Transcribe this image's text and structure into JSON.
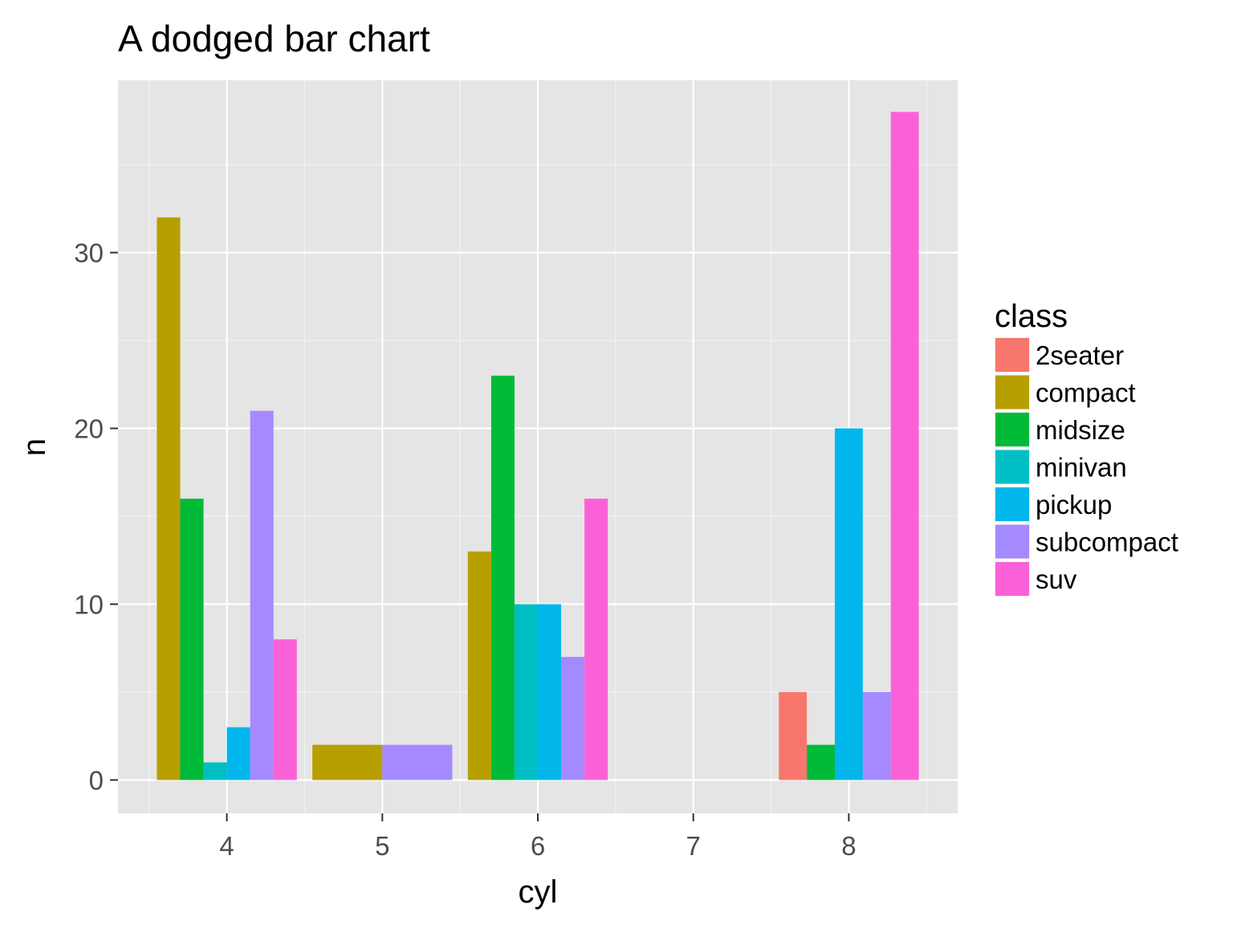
{
  "chart_data": {
    "type": "bar",
    "title": "A dodged bar chart",
    "xlabel": "cyl",
    "ylabel": "n",
    "x_ticks": [
      "4",
      "5",
      "6",
      "7",
      "8"
    ],
    "y_ticks": [
      0,
      10,
      20,
      30
    ],
    "ylim": [
      -1.9,
      39.8
    ],
    "xlim": [
      3.3,
      8.7
    ],
    "grid": true,
    "legend": {
      "title": "class",
      "placement": "right",
      "entries": [
        {
          "name": "2seater",
          "color": "#F8766D"
        },
        {
          "name": "compact",
          "color": "#B79F00"
        },
        {
          "name": "midsize",
          "color": "#00BA38"
        },
        {
          "name": "minivan",
          "color": "#00BFC4"
        },
        {
          "name": "pickup",
          "color": "#00B6EB"
        },
        {
          "name": "subcompact",
          "color": "#A58AFF"
        },
        {
          "name": "suv",
          "color": "#FB61D7"
        }
      ]
    },
    "groups": [
      {
        "cyl": 4,
        "bars": [
          {
            "class": "compact",
            "n": 32
          },
          {
            "class": "midsize",
            "n": 16
          },
          {
            "class": "minivan",
            "n": 1
          },
          {
            "class": "pickup",
            "n": 3
          },
          {
            "class": "subcompact",
            "n": 21
          },
          {
            "class": "suv",
            "n": 8
          }
        ]
      },
      {
        "cyl": 5,
        "bars": [
          {
            "class": "compact",
            "n": 2
          },
          {
            "class": "subcompact",
            "n": 2
          }
        ]
      },
      {
        "cyl": 6,
        "bars": [
          {
            "class": "compact",
            "n": 13
          },
          {
            "class": "midsize",
            "n": 23
          },
          {
            "class": "minivan",
            "n": 10
          },
          {
            "class": "pickup",
            "n": 10
          },
          {
            "class": "subcompact",
            "n": 7
          },
          {
            "class": "suv",
            "n": 16
          }
        ]
      },
      {
        "cyl": 8,
        "bars": [
          {
            "class": "2seater",
            "n": 5
          },
          {
            "class": "midsize",
            "n": 2
          },
          {
            "class": "pickup",
            "n": 20
          },
          {
            "class": "subcompact",
            "n": 5
          },
          {
            "class": "suv",
            "n": 38
          }
        ]
      }
    ]
  },
  "colors": {
    "panel_background": "#E5E5E5",
    "grid_major": "#FFFFFF",
    "grid_minor": "#F2F2F2",
    "tick_text": "#4D4D4D",
    "text": "#000000"
  }
}
